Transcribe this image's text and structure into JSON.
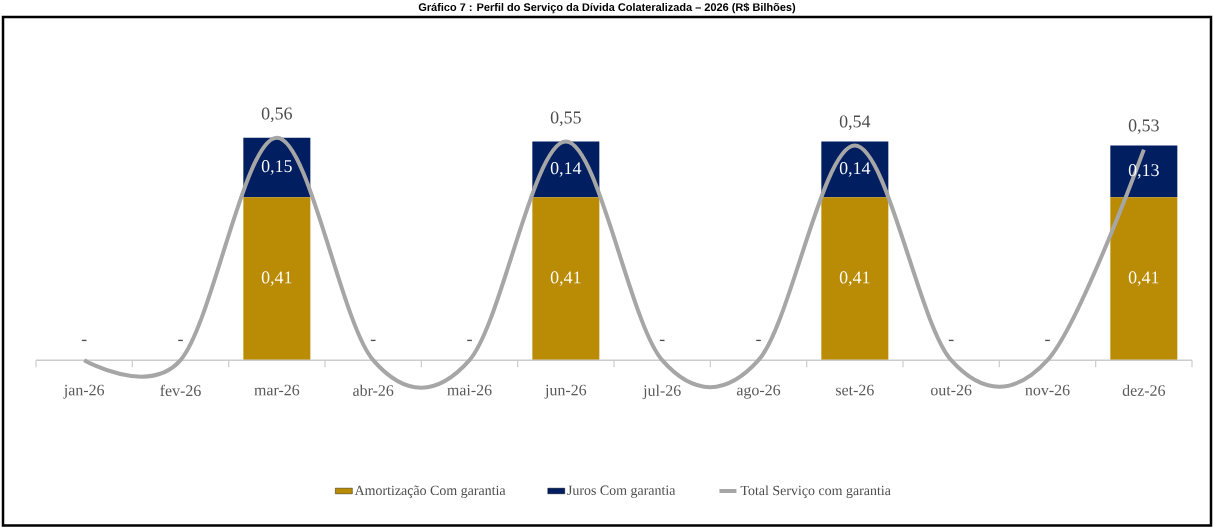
{
  "chart_data": {
    "type": "bar",
    "title": "Gráfico 7 : Perfil do Serviço da Dívida Colateralizada – 2026 (R$ Bilhões)",
    "categories": [
      "jan-26",
      "fev-26",
      "mar-26",
      "abr-26",
      "mai-26",
      "jun-26",
      "jul-26",
      "ago-26",
      "set-26",
      "out-26",
      "nov-26",
      "dez-26"
    ],
    "stacked": true,
    "legend": "bottom",
    "series": [
      {
        "name": "Amortização Com garantia",
        "color": "#BA8C05",
        "values": [
          0,
          0,
          0.41,
          0,
          0,
          0.41,
          0,
          0,
          0.41,
          0,
          0,
          0.41
        ],
        "value_labels": [
          null,
          null,
          "0,41",
          null,
          null,
          "0,41",
          null,
          null,
          "0,41",
          null,
          null,
          "0,41"
        ]
      },
      {
        "name": "Juros Com garantia",
        "color": "#001E60",
        "values": [
          0,
          0,
          0.15,
          0,
          0,
          0.14,
          0,
          0,
          0.14,
          0,
          0,
          0.13
        ],
        "value_labels": [
          null,
          null,
          "0,15",
          null,
          null,
          "0,14",
          null,
          null,
          "0,14",
          null,
          null,
          "0,13"
        ]
      },
      {
        "name": "Total Serviço com garantia",
        "type": "line",
        "color": "#A6A6A6",
        "values": [
          0,
          0,
          0.56,
          0,
          0,
          0.55,
          0,
          0,
          0.54,
          0,
          0,
          0.53
        ],
        "value_labels": [
          "-",
          "-",
          "0,56",
          "-",
          "-",
          "0,55",
          "-",
          "-",
          "0,54",
          "-",
          "-",
          "0,53"
        ]
      }
    ]
  }
}
